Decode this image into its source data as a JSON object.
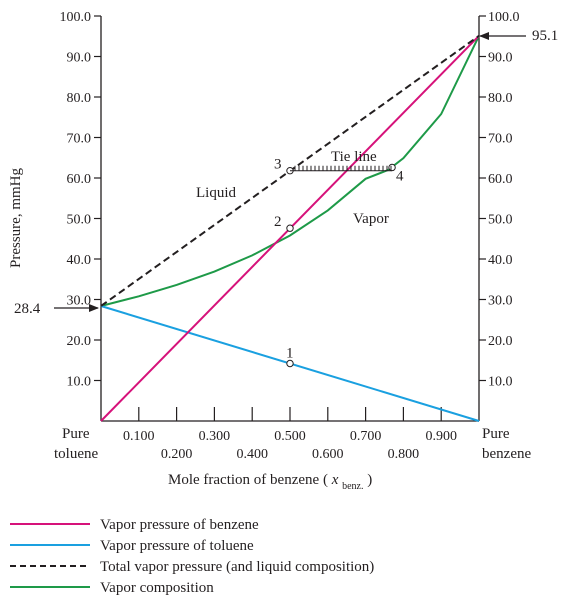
{
  "chart_data": {
    "type": "line",
    "xlabel": "Mole fraction of benzene",
    "xlabel_var": "x",
    "xlabel_var_sub": "benz.",
    "ylabel": "Pressure, mmHg",
    "xlim": [
      0,
      1
    ],
    "ylim": [
      0,
      100
    ],
    "x_ticks": [
      0.1,
      0.2,
      0.3,
      0.4,
      0.5,
      0.6,
      0.7,
      0.8,
      0.9
    ],
    "x_tick_labels_upper": [
      "0.100",
      "0.300",
      "0.500",
      "0.700",
      "0.900"
    ],
    "x_tick_labels_lower": [
      "0.200",
      "0.400",
      "0.600",
      "0.800"
    ],
    "y_ticks": [
      10,
      20,
      30,
      40,
      50,
      60,
      70,
      80,
      90,
      100
    ],
    "y_tick_labels_left": [
      "10.0",
      "20.0",
      "30.0",
      "40.0",
      "50.0",
      "60.0",
      "70.0",
      "80.0",
      "90.0",
      "100.0"
    ],
    "y_tick_labels_right": [
      "10.0",
      "20.0",
      "30.0",
      "40.0",
      "50.0",
      "60.0",
      "70.0",
      "80.0",
      "90.0",
      "100.0"
    ],
    "end_labels": {
      "left_top": "Pure",
      "left_bottom": "toluene",
      "right_top": "Pure",
      "right_bottom": "benzene"
    },
    "series": [
      {
        "name": "Vapor pressure of benzene",
        "color": "#d6127a",
        "dash": false,
        "x": [
          0,
          1
        ],
        "y": [
          0,
          95.1
        ]
      },
      {
        "name": "Vapor pressure of toluene",
        "color": "#1aa0e0",
        "dash": false,
        "x": [
          0,
          1
        ],
        "y": [
          28.4,
          0
        ]
      },
      {
        "name": "Total vapor pressure (and liquid composition)",
        "color": "#231f20",
        "dash": true,
        "x": [
          0,
          1
        ],
        "y": [
          28.4,
          95.1
        ]
      },
      {
        "name": "Vapor composition",
        "color": "#1e9a48",
        "dash": false,
        "x": [
          0,
          0.1,
          0.2,
          0.3,
          0.4,
          0.5,
          0.6,
          0.7,
          0.76,
          0.8,
          0.9,
          1.0
        ],
        "y": [
          28.4,
          30.8,
          33.6,
          36.9,
          40.9,
          45.8,
          52.0,
          59.8,
          62.0,
          64.9,
          75.8,
          95.1
        ]
      }
    ],
    "annotations": {
      "left_value": "28.4",
      "right_value": "95.1",
      "liquid_label": "Liquid",
      "vapor_label": "Vapor",
      "tie_line_label": "Tie line",
      "points": [
        {
          "label": "1",
          "x": 0.5,
          "y": 14.2
        },
        {
          "label": "2",
          "x": 0.5,
          "y": 47.6
        },
        {
          "label": "3",
          "x": 0.5,
          "y": 61.8
        },
        {
          "label": "4",
          "x": 0.77,
          "y": 62.6
        }
      ]
    },
    "tie_line": {
      "x": [
        0.5,
        0.77
      ],
      "y": 61.8
    }
  }
}
